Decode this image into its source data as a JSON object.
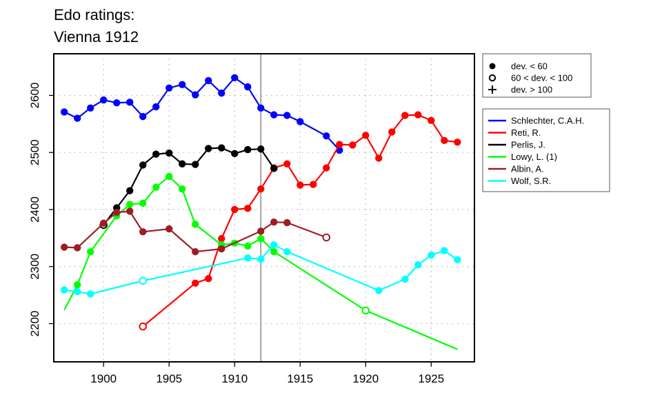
{
  "chart_data": {
    "type": "line",
    "title_lines": [
      "Edo ratings:",
      "Vienna 1912"
    ],
    "xlabel": "",
    "ylabel": "",
    "xlim": [
      1896.2,
      1928.3
    ],
    "ylim": [
      2133,
      2673
    ],
    "x_ticks": [
      1900,
      1905,
      1910,
      1915,
      1920,
      1925
    ],
    "y_ticks": [
      2200,
      2300,
      2400,
      2500,
      2600
    ],
    "grid": true,
    "reference_line_x": 1912,
    "marker_legend": [
      {
        "marker": "filled",
        "label": "dev. < 60"
      },
      {
        "marker": "open",
        "label": "60 < dev. < 100"
      },
      {
        "marker": "plus",
        "label": "dev. > 100"
      }
    ],
    "series": [
      {
        "name": "Schlechter, C.A.H.",
        "color": "#0000ff",
        "points": [
          [
            1897,
            2571,
            "filled"
          ],
          [
            1898,
            2560,
            "filled"
          ],
          [
            1899,
            2578,
            "filled"
          ],
          [
            1900,
            2592,
            "filled"
          ],
          [
            1901,
            2587,
            "filled"
          ],
          [
            1902,
            2588,
            "filled"
          ],
          [
            1903,
            2563,
            "filled"
          ],
          [
            1904,
            2580,
            "filled"
          ],
          [
            1905,
            2613,
            "filled"
          ],
          [
            1906,
            2619,
            "filled"
          ],
          [
            1907,
            2601,
            "filled"
          ],
          [
            1908,
            2626,
            "filled"
          ],
          [
            1909,
            2604,
            "filled"
          ],
          [
            1910,
            2631,
            "filled"
          ],
          [
            1911,
            2615,
            "filled"
          ],
          [
            1912,
            2578,
            "filled"
          ],
          [
            1913,
            2566,
            "filled"
          ],
          [
            1914,
            2565,
            "filled"
          ],
          [
            1915,
            2554,
            "filled"
          ],
          [
            1917,
            2529,
            "filled"
          ],
          [
            1918,
            2504,
            "filled"
          ]
        ]
      },
      {
        "name": "Reti, R.",
        "color": "#ff0000",
        "points": [
          [
            1903,
            2195,
            "open"
          ],
          [
            1907,
            2271,
            "filled"
          ],
          [
            1908,
            2279,
            "filled"
          ],
          [
            1909,
            2349,
            "filled"
          ],
          [
            1910,
            2400,
            "filled"
          ],
          [
            1911,
            2402,
            "filled"
          ],
          [
            1912,
            2436,
            "filled"
          ],
          [
            1913,
            2473,
            "filled"
          ],
          [
            1914,
            2480,
            "filled"
          ],
          [
            1915,
            2443,
            "filled"
          ],
          [
            1916,
            2444,
            "filled"
          ],
          [
            1917,
            2473,
            "filled"
          ],
          [
            1918,
            2514,
            "filled"
          ],
          [
            1919,
            2513,
            "filled"
          ],
          [
            1920,
            2530,
            "filled"
          ],
          [
            1921,
            2490,
            "filled"
          ],
          [
            1922,
            2536,
            "filled"
          ],
          [
            1923,
            2565,
            "filled"
          ],
          [
            1924,
            2566,
            "filled"
          ],
          [
            1925,
            2556,
            "filled"
          ],
          [
            1926,
            2521,
            "filled"
          ],
          [
            1927,
            2518,
            "filled"
          ]
        ]
      },
      {
        "name": "Perlis, J.",
        "color": "#000000",
        "points": [
          [
            1900,
            2373,
            "open"
          ],
          [
            1901,
            2403,
            "filled"
          ],
          [
            1902,
            2433,
            "filled"
          ],
          [
            1903,
            2478,
            "filled"
          ],
          [
            1904,
            2497,
            "filled"
          ],
          [
            1905,
            2499,
            "filled"
          ],
          [
            1906,
            2480,
            "filled"
          ],
          [
            1907,
            2479,
            "filled"
          ],
          [
            1908,
            2507,
            "filled"
          ],
          [
            1909,
            2508,
            "filled"
          ],
          [
            1910,
            2498,
            "filled"
          ],
          [
            1911,
            2505,
            "filled"
          ],
          [
            1912,
            2506,
            "filled"
          ],
          [
            1913,
            2472,
            "filled"
          ]
        ]
      },
      {
        "name": "Lowy, L. (1)",
        "color": "#00ff00",
        "points": [
          [
            1897,
            2224,
            "none"
          ],
          [
            1898,
            2268,
            "filled"
          ],
          [
            1899,
            2326,
            "filled"
          ],
          [
            1901,
            2389,
            "filled"
          ],
          [
            1902,
            2409,
            "filled"
          ],
          [
            1903,
            2411,
            "filled"
          ],
          [
            1904,
            2439,
            "filled"
          ],
          [
            1905,
            2458,
            "filled"
          ],
          [
            1906,
            2436,
            "filled"
          ],
          [
            1907,
            2374,
            "filled"
          ],
          [
            1909,
            2338,
            "filled"
          ],
          [
            1910,
            2341,
            "filled"
          ],
          [
            1911,
            2336,
            "filled"
          ],
          [
            1912,
            2349,
            "filled"
          ],
          [
            1913,
            2326,
            "filled"
          ],
          [
            1920,
            2223,
            "open"
          ],
          [
            1927,
            2155,
            "none"
          ]
        ]
      },
      {
        "name": "Albin, A.",
        "color": "#a01c24",
        "points": [
          [
            1897,
            2334,
            "filled"
          ],
          [
            1898,
            2333,
            "filled"
          ],
          [
            1900,
            2376,
            "filled"
          ],
          [
            1901,
            2395,
            "filled"
          ],
          [
            1902,
            2397,
            "filled"
          ],
          [
            1903,
            2361,
            "filled"
          ],
          [
            1905,
            2366,
            "filled"
          ],
          [
            1907,
            2326,
            "filled"
          ],
          [
            1909,
            2331,
            "filled"
          ],
          [
            1912,
            2362,
            "filled"
          ],
          [
            1913,
            2378,
            "filled"
          ],
          [
            1914,
            2377,
            "filled"
          ],
          [
            1917,
            2351,
            "open"
          ]
        ]
      },
      {
        "name": "Wolf, S.R.",
        "color": "#00ffff",
        "points": [
          [
            1897,
            2259,
            "filled"
          ],
          [
            1898,
            2256,
            "filled"
          ],
          [
            1899,
            2252,
            "filled"
          ],
          [
            1903,
            2275,
            "open"
          ],
          [
            1911,
            2315,
            "filled"
          ],
          [
            1912,
            2313,
            "filled"
          ],
          [
            1913,
            2338,
            "filled"
          ],
          [
            1914,
            2326,
            "filled"
          ],
          [
            1921,
            2258,
            "filled"
          ],
          [
            1923,
            2278,
            "filled"
          ],
          [
            1924,
            2303,
            "filled"
          ],
          [
            1925,
            2320,
            "filled"
          ],
          [
            1926,
            2328,
            "filled"
          ],
          [
            1927,
            2312,
            "filled"
          ]
        ]
      }
    ]
  }
}
